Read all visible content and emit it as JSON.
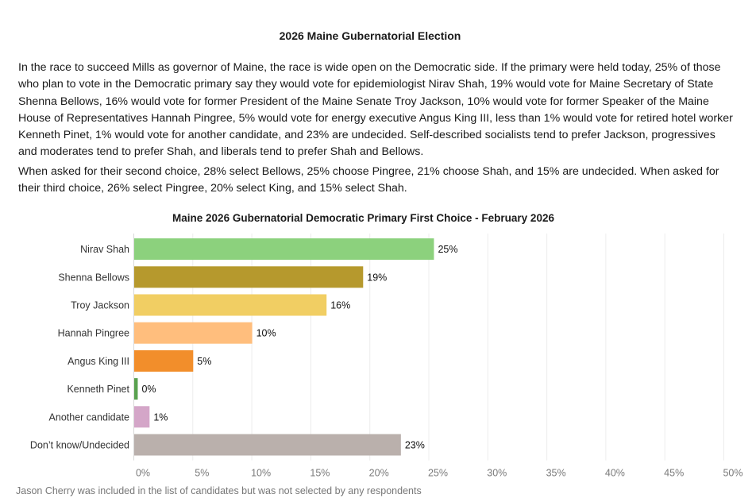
{
  "document": {
    "title": "2026 Maine Gubernatorial Election",
    "paragraphs": [
      "In the race to succeed Mills as governor of Maine, the race is wide open on the Democratic side. If the primary were held today, 25% of those who plan to vote in the Democratic primary say they would vote for epidemiologist Nirav Shah, 19% would vote for Maine Secretary of State Shenna Bellows, 16% would vote for former President of the Maine Senate Troy Jackson, 10% would vote for former Speaker of the Maine House of Representatives Hannah Pingree, 5% would vote for energy executive Angus King III, less than 1% would vote for retired hotel worker Kenneth Pinet, 1% would vote for another candidate, and 23% are undecided. Self-described socialists tend to prefer Jackson, progressives and moderates tend to prefer Shah, and liberals tend to prefer Shah and Bellows.",
      "When asked for their second choice, 28% select Bellows, 25% choose Pingree, 21% choose Shah, and 15% are undecided. When asked for their third choice, 26% select Pingree, 20% select King, and 15% select Shah."
    ],
    "footnote": "Jason Cherry was included in the list of candidates but was not selected by any respondents"
  },
  "chart_data": {
    "type": "bar",
    "orientation": "horizontal",
    "title": "Maine 2026 Gubernatorial Democratic Primary First Choice - February 2026",
    "xlabel": "",
    "ylabel": "",
    "categories": [
      "Nirav Shah",
      "Shenna Bellows",
      "Troy Jackson",
      "Hannah Pingree",
      "Angus King III",
      "Kenneth Pinet",
      "Another candidate",
      "Don’t know/Undecided"
    ],
    "values": [
      25.4,
      19.4,
      16.3,
      10.0,
      5.0,
      0.3,
      1.3,
      22.6
    ],
    "labels": [
      "25%",
      "19%",
      "16%",
      "10%",
      "5%",
      "0%",
      "1%",
      "23%"
    ],
    "colors": [
      "#8cd17d",
      "#b6992d",
      "#f1ce63",
      "#ffbe7d",
      "#f28e2b",
      "#59a14f",
      "#d4a6c8",
      "#bab0ac"
    ],
    "xlim": [
      0,
      50
    ],
    "xticks": [
      0,
      5,
      10,
      15,
      20,
      25,
      30,
      35,
      40,
      45,
      50
    ],
    "xtick_labels": [
      "0%",
      "5%",
      "10%",
      "15%",
      "20%",
      "25%",
      "30%",
      "35%",
      "40%",
      "45%",
      "50%"
    ],
    "grid": true,
    "legend": "none"
  }
}
